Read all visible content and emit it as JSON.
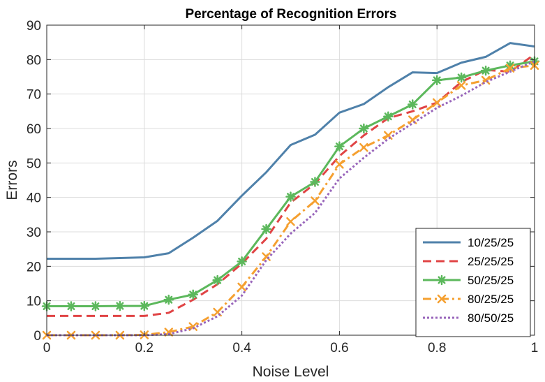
{
  "chart_data": {
    "type": "line",
    "title": "Percentage of Recognition Errors",
    "xlabel": "Noise Level",
    "ylabel": "Errors",
    "xlim": [
      0,
      1
    ],
    "ylim": [
      0,
      90
    ],
    "xticks": [
      0,
      0.2,
      0.4,
      0.6,
      0.8,
      1
    ],
    "xtick_labels": [
      "0",
      "0.2",
      "0.4",
      "0.6",
      "0.8",
      "1"
    ],
    "yticks": [
      0,
      10,
      20,
      30,
      40,
      50,
      60,
      70,
      80,
      90
    ],
    "ytick_labels": [
      "0",
      "10",
      "20",
      "30",
      "40",
      "50",
      "60",
      "70",
      "80",
      "90"
    ],
    "grid": true,
    "legend_position": "bottom-right",
    "x": [
      0,
      0.05,
      0.1,
      0.15,
      0.2,
      0.25,
      0.3,
      0.35,
      0.4,
      0.45,
      0.5,
      0.55,
      0.6,
      0.65,
      0.7,
      0.75,
      0.8,
      0.85,
      0.9,
      0.95,
      1
    ],
    "series": [
      {
        "name": "10/25/25",
        "color": "#4f81aa",
        "style": "solid",
        "marker": "none",
        "values": [
          22.2,
          22.2,
          22.2,
          22.4,
          22.6,
          23.8,
          28.3,
          33.2,
          40.5,
          47.3,
          55.2,
          58.2,
          64.6,
          67.1,
          72.0,
          76.3,
          76.1,
          79.1,
          80.8,
          84.8,
          83.8
        ]
      },
      {
        "name": "25/25/25",
        "color": "#e04445",
        "style": "dashed",
        "marker": "none",
        "values": [
          5.6,
          5.6,
          5.6,
          5.6,
          5.6,
          6.5,
          10.3,
          14.8,
          20.8,
          28.0,
          38.5,
          44.0,
          52.0,
          58.0,
          63.0,
          65.0,
          67.5,
          73.5,
          77.0,
          76.5,
          81.5
        ]
      },
      {
        "name": "50/25/25",
        "color": "#5cb85c",
        "style": "solid",
        "marker": "star",
        "values": [
          8.4,
          8.4,
          8.4,
          8.5,
          8.5,
          10.3,
          11.8,
          16.0,
          21.4,
          30.8,
          40.2,
          44.5,
          54.8,
          60.0,
          63.5,
          67.0,
          74.0,
          74.8,
          76.8,
          78.3,
          79.5
        ]
      },
      {
        "name": "80/25/25",
        "color": "#f5a030",
        "style": "dashdot",
        "marker": "x",
        "values": [
          0.0,
          0.0,
          0.0,
          0.0,
          0.1,
          0.9,
          2.5,
          6.7,
          14.0,
          22.8,
          33.0,
          39.0,
          49.6,
          54.5,
          58.0,
          62.5,
          67.5,
          72.5,
          74.0,
          77.5,
          78.3
        ]
      },
      {
        "name": "80/50/25",
        "color": "#9966bb",
        "style": "dotted",
        "marker": "none",
        "values": [
          0.0,
          0.0,
          0.0,
          0.0,
          0.0,
          0.3,
          2.0,
          5.5,
          11.5,
          21.8,
          29.5,
          35.5,
          45.5,
          51.5,
          57.0,
          61.5,
          66.0,
          69.5,
          73.5,
          76.5,
          79.5
        ]
      }
    ]
  }
}
